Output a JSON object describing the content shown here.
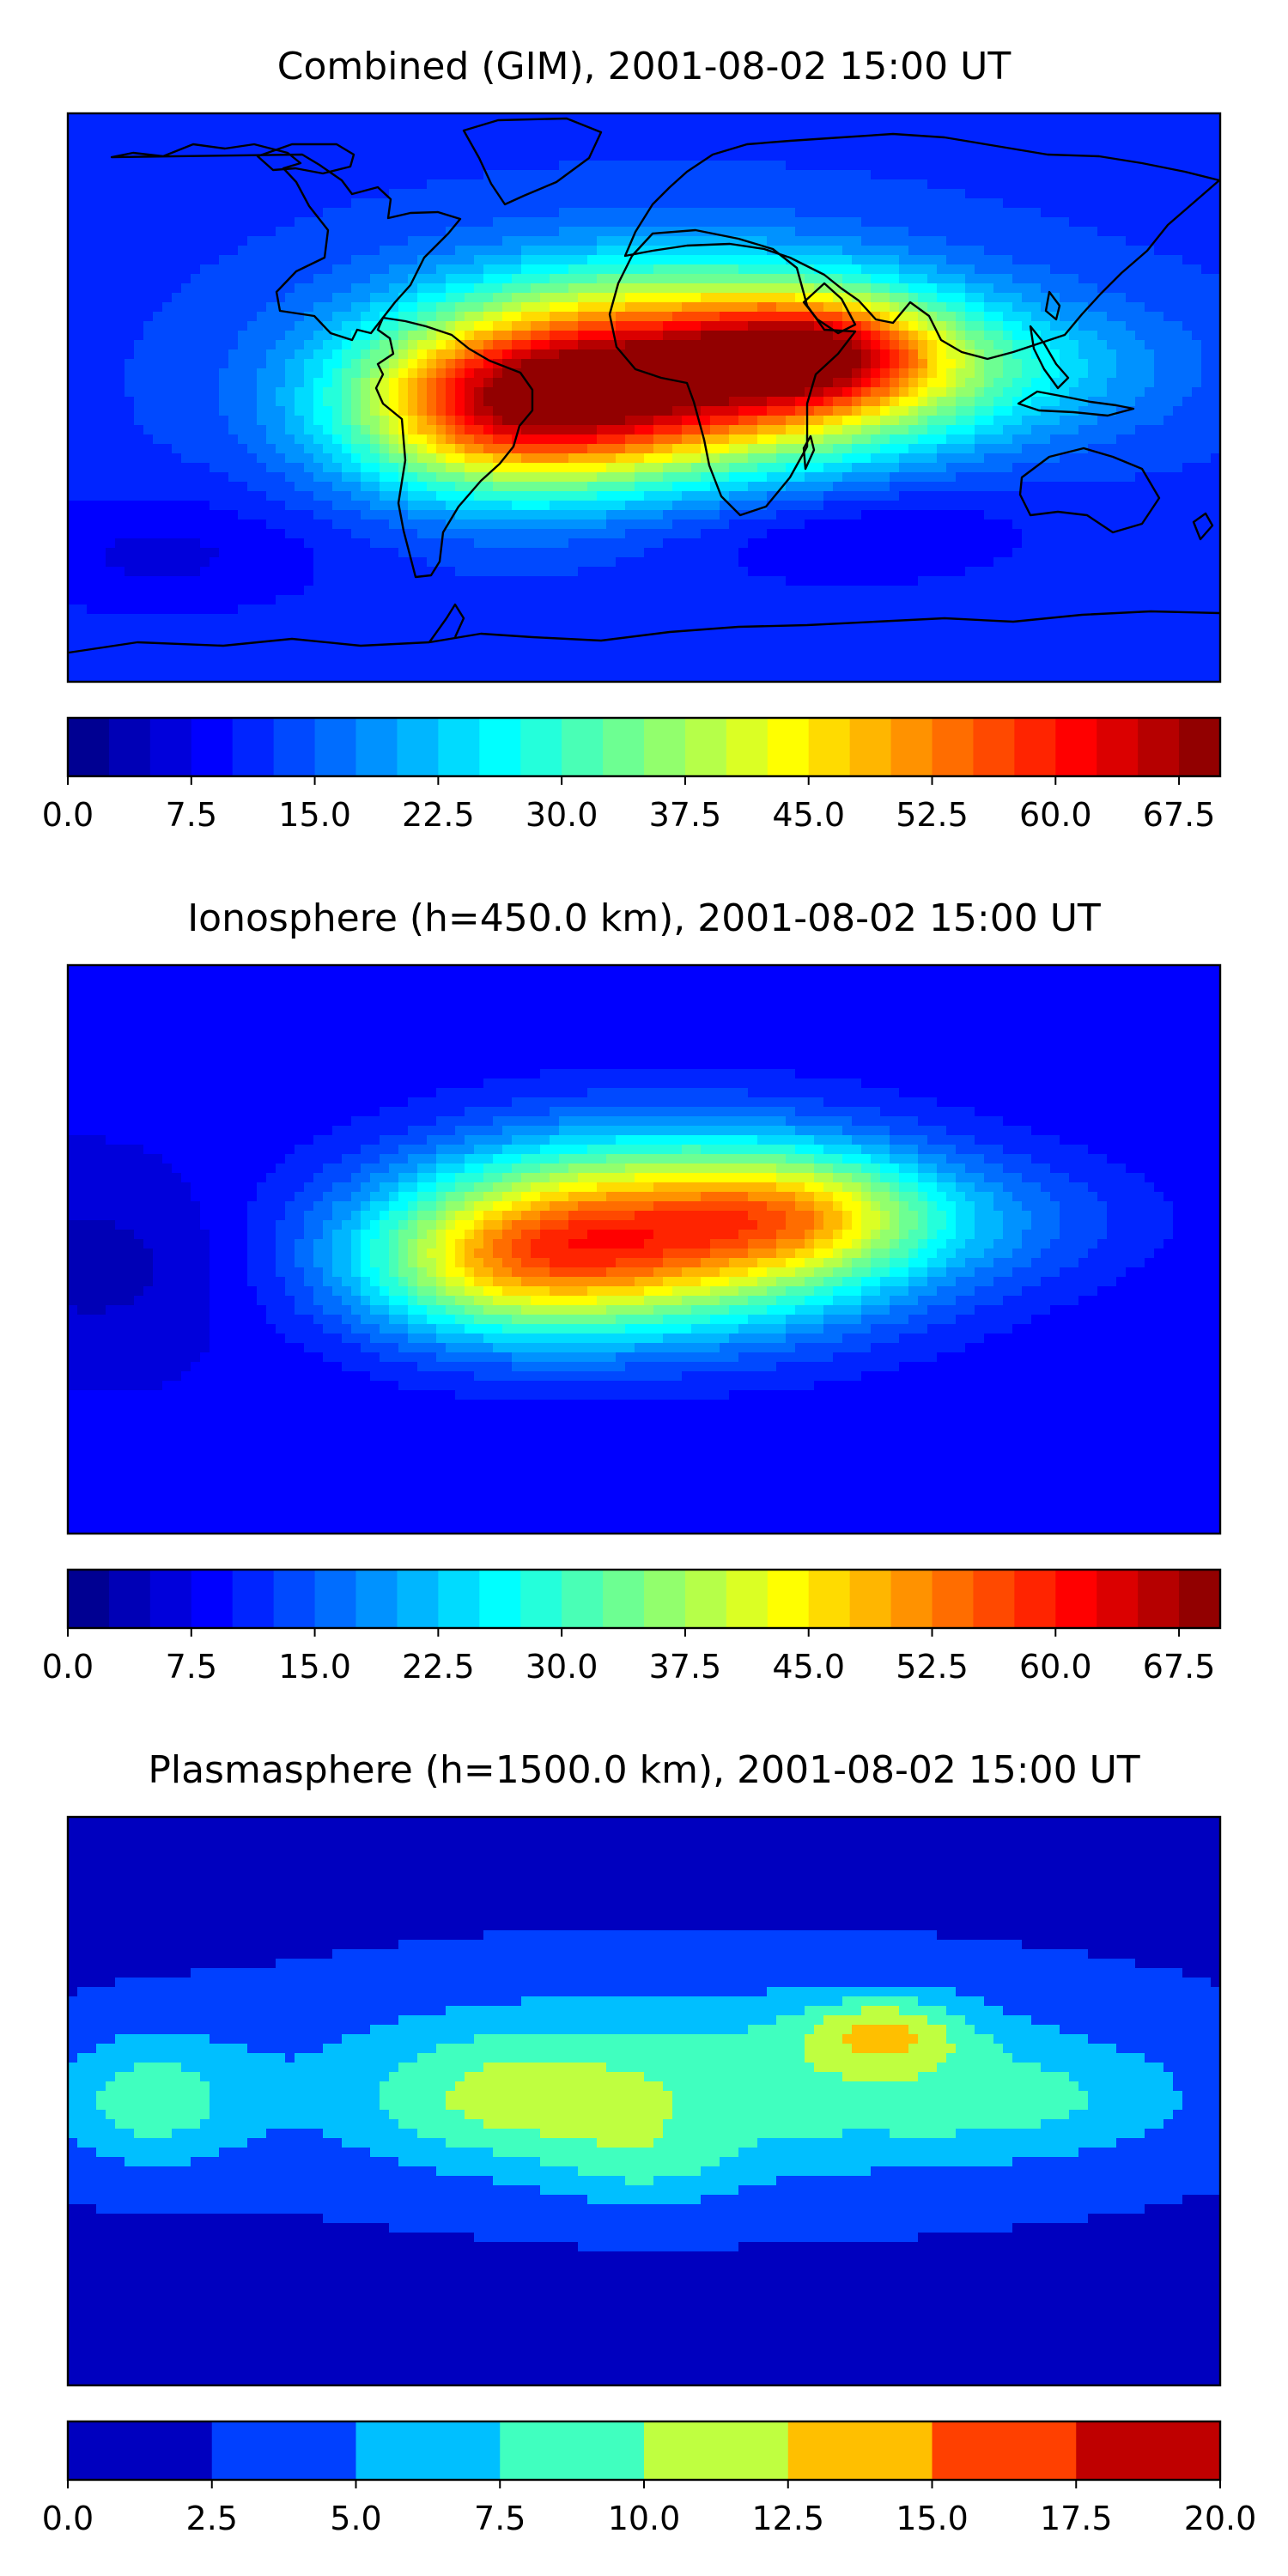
{
  "figure": {
    "panels": [
      {
        "title": "Combined (GIM), 2001-08-02 15:00 UT",
        "colorbar": {
          "min": 0.0,
          "max": 70.0,
          "levels": 28,
          "tick_values": [
            0.0,
            7.5,
            15.0,
            22.5,
            30.0,
            37.5,
            45.0,
            52.5,
            60.0,
            67.5
          ],
          "tick_labels": [
            "0.0",
            "7.5",
            "15.0",
            "22.5",
            "30.0",
            "37.5",
            "45.0",
            "52.5",
            "60.0",
            "67.5"
          ]
        },
        "field": {
          "base": 12,
          "blobs": [
            {
              "lon": 10,
              "lat": 8,
              "amp": 52,
              "slon": 55,
              "slat": 22
            },
            {
              "lon": -45,
              "lat": -5,
              "amp": 30,
              "slon": 35,
              "slat": 18
            },
            {
              "lon": 55,
              "lat": 15,
              "amp": 22,
              "slon": 25,
              "slat": 12
            },
            {
              "lon": 100,
              "lat": 10,
              "amp": 10,
              "slon": 45,
              "slat": 15
            },
            {
              "lon": 60,
              "lat": -40,
              "amp": -6,
              "slon": 45,
              "slat": 14
            },
            {
              "lon": -150,
              "lat": -50,
              "amp": -5,
              "slon": 40,
              "slat": 14
            }
          ]
        }
      },
      {
        "title": "Ionosphere  (h=450.0 km), 2001-08-02 15:00 UT",
        "colorbar": {
          "min": 0.0,
          "max": 70.0,
          "levels": 28,
          "tick_values": [
            0.0,
            7.5,
            15.0,
            22.5,
            30.0,
            37.5,
            45.0,
            52.5,
            60.0,
            67.5
          ],
          "tick_labels": [
            "0.0",
            "7.5",
            "15.0",
            "22.5",
            "30.0",
            "37.5",
            "45.0",
            "52.5",
            "60.0",
            "67.5"
          ]
        },
        "field": {
          "base": 8,
          "blobs": [
            {
              "lon": 8,
              "lat": 6,
              "amp": 43,
              "slon": 52,
              "slat": 21
            },
            {
              "lon": -45,
              "lat": -5,
              "amp": 22,
              "slon": 35,
              "slat": 17
            },
            {
              "lon": 50,
              "lat": 12,
              "amp": 12,
              "slon": 25,
              "slat": 12
            },
            {
              "lon": 100,
              "lat": 10,
              "amp": 6,
              "slon": 40,
              "slat": 14
            },
            {
              "lon": -170,
              "lat": -5,
              "amp": -4,
              "slon": 30,
              "slat": 20
            }
          ]
        }
      },
      {
        "title": "Plasmasphere (h=1500.0 km), 2001-08-02 15:00 UT",
        "colorbar": {
          "min": 0.0,
          "max": 20.0,
          "levels": 8,
          "tick_values": [
            0.0,
            2.5,
            5.0,
            7.5,
            10.0,
            12.5,
            15.0,
            17.5,
            20.0
          ],
          "tick_labels": [
            "0.0",
            "2.5",
            "5.0",
            "7.5",
            "10.0",
            "12.5",
            "15.0",
            "17.5",
            "20.0"
          ]
        },
        "field": {
          "base": 2,
          "blobs": [
            {
              "lon": 20,
              "lat": 5,
              "amp": 7,
              "slon": 90,
              "slat": 22
            },
            {
              "lon": 75,
              "lat": 22,
              "amp": 7,
              "slon": 18,
              "slat": 8
            },
            {
              "lon": -155,
              "lat": 0,
              "amp": 6,
              "slon": 22,
              "slat": 15
            },
            {
              "lon": -45,
              "lat": 0,
              "amp": 4,
              "slon": 30,
              "slat": 14
            },
            {
              "lon": 120,
              "lat": 0,
              "amp": 3,
              "slon": 35,
              "slat": 12
            },
            {
              "lon": 0,
              "lat": -20,
              "amp": 3,
              "slon": 20,
              "slat": 10
            }
          ]
        }
      }
    ]
  }
}
